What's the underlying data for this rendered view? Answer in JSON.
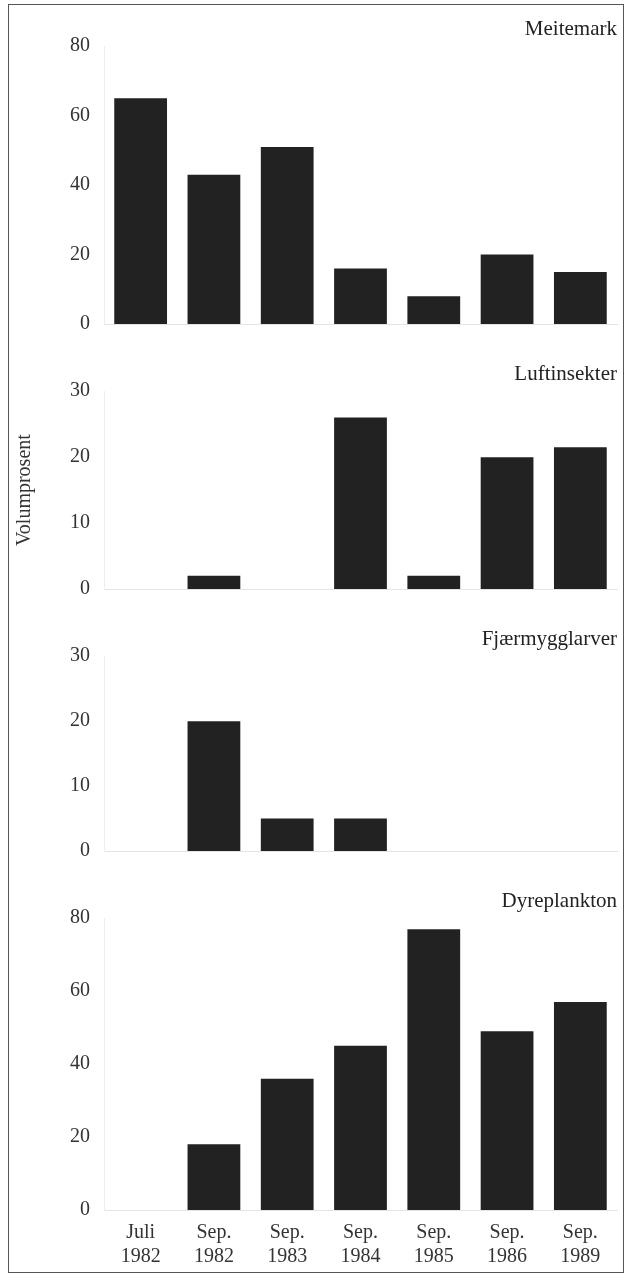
{
  "chart_data": [
    {
      "type": "bar",
      "title": "Meitemark",
      "categories": [
        null,
        null,
        null,
        null,
        null,
        null,
        null
      ],
      "values": [
        65,
        43,
        51,
        16,
        8,
        20,
        15
      ],
      "color": "#222222",
      "ylim": [
        0,
        80
      ],
      "yticks": [
        0,
        20,
        40,
        60,
        80
      ],
      "grid": false,
      "tick_labels": "y"
    },
    {
      "type": "bar",
      "title": "Luftinsekter",
      "ylabel": "Volumprosent",
      "categories": [
        null,
        null,
        null,
        null,
        null,
        null,
        null
      ],
      "values": [
        0,
        2,
        0,
        26,
        2,
        20,
        21.5
      ],
      "color": "#222222",
      "ylim": [
        0,
        30
      ],
      "yticks": [
        0,
        10,
        20,
        30
      ],
      "grid": false,
      "tick_labels": "y"
    },
    {
      "type": "bar",
      "title": "Fjærmygglarver",
      "categories": [
        null,
        null,
        null,
        null,
        null,
        null,
        null
      ],
      "values": [
        0,
        20,
        5,
        5,
        0,
        0,
        0
      ],
      "color": "#222222",
      "ylim": [
        0,
        30
      ],
      "yticks": [
        0,
        10,
        20,
        30
      ],
      "grid": false,
      "tick_labels": "y"
    },
    {
      "type": "bar",
      "title": "Dyreplankton",
      "categories": [
        "Juli 1982",
        "Sep. 1982",
        "Sep. 1983",
        "Sep. 1984",
        "Sep. 1985",
        "Sep. 1986",
        "Sep. 1989"
      ],
      "values": [
        0,
        18,
        36,
        45,
        77,
        49,
        57
      ],
      "color": "#222222",
      "ylim": [
        0,
        80
      ],
      "yticks": [
        0,
        20,
        40,
        60,
        80
      ],
      "grid": false
    }
  ]
}
